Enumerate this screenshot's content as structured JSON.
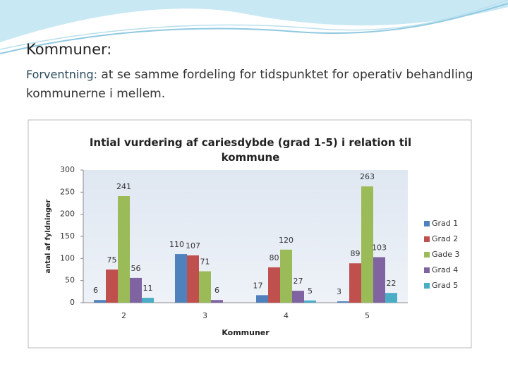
{
  "slide": {
    "heading": "Kommuner:",
    "lead_label": "Forventning:",
    "lead_text": "at se samme fordeling for tidspunktet for operativ behandling kommunerne i mellem."
  },
  "chart_data": {
    "type": "bar",
    "title": "Intial vurdering af cariesdybde (grad 1-5) i relation til kommune",
    "x_label": "Kommuner",
    "y_label": "antal af fyldninger",
    "categories": [
      "2",
      "3",
      "4",
      "5"
    ],
    "series": [
      {
        "name": "Grad 1",
        "color": "#4f81bd",
        "values": [
          6,
          110,
          17,
          3
        ]
      },
      {
        "name": "Grad 2",
        "color": "#c0504d",
        "values": [
          75,
          107,
          80,
          89
        ]
      },
      {
        "name": "Gade 3",
        "color": "#9bbb59",
        "values": [
          241,
          71,
          120,
          263
        ]
      },
      {
        "name": "Grad 4",
        "color": "#8064a2",
        "values": [
          56,
          6,
          27,
          103
        ]
      },
      {
        "name": "Grad 5",
        "color": "#4bacc6",
        "values": [
          11,
          null,
          5,
          22
        ]
      }
    ],
    "ylim": [
      0,
      300
    ],
    "yticks": [
      0,
      50,
      100,
      150,
      200,
      250,
      300
    ],
    "legend": "right"
  }
}
